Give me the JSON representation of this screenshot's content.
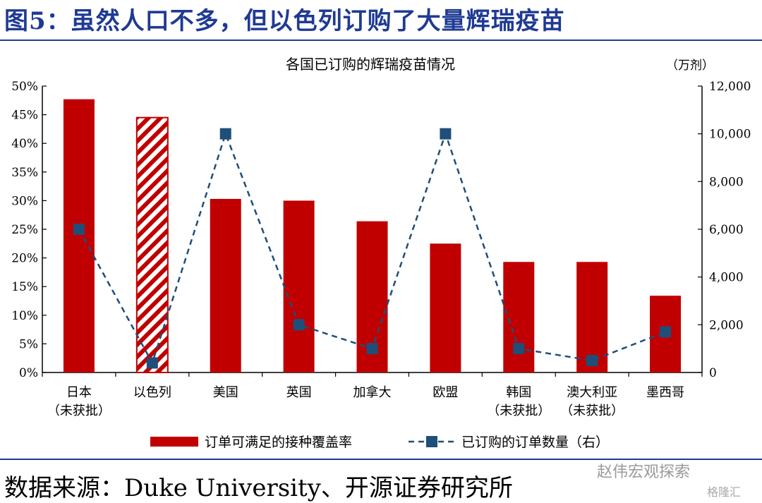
{
  "figure": {
    "title": "图5：虽然人口不多，但以色列订购了大量辉瑞疫苗",
    "source": "数据来源：Duke University、开源证券研究所",
    "watermark": "赵伟宏观探索",
    "watermark_small": "格隆汇"
  },
  "chart_data": {
    "type": "bar",
    "title": "各国已订购的辉瑞疫苗情况",
    "right_unit": "（万剂）",
    "categories": [
      [
        "日本",
        "（未获批）"
      ],
      [
        "以色列"
      ],
      [
        "美国"
      ],
      [
        "英国"
      ],
      [
        "加拿大"
      ],
      [
        "欧盟"
      ],
      [
        "韩国",
        "（未获批）"
      ],
      [
        "澳大利亚",
        "（未获批）"
      ],
      [
        "墨西哥"
      ]
    ],
    "series": [
      {
        "name": "订单可满足的接种覆盖率",
        "type": "bar",
        "axis": "left",
        "values": [
          47.7,
          44.5,
          30.3,
          30.0,
          26.4,
          22.5,
          19.3,
          19.3,
          13.4
        ],
        "highlight_index": 1,
        "color": "#c00000"
      },
      {
        "name": "已订购的订单数量（右）",
        "type": "line",
        "style": "dashed",
        "axis": "right",
        "values": [
          6000,
          400,
          10000,
          2000,
          1000,
          10000,
          1000,
          500,
          1700
        ],
        "color": "#1f4e79"
      }
    ],
    "y_left": {
      "min": 0,
      "max": 50,
      "step": 5,
      "tick_labels": [
        "0%",
        "5%",
        "10%",
        "15%",
        "20%",
        "25%",
        "30%",
        "35%",
        "40%",
        "45%",
        "50%"
      ]
    },
    "y_right": {
      "min": 0,
      "max": 12000,
      "step": 2000,
      "tick_labels": [
        "0",
        "2,000",
        "4,000",
        "6,000",
        "8,000",
        "10,000",
        "12,000"
      ]
    },
    "grid": false,
    "legend_position": "bottom"
  }
}
